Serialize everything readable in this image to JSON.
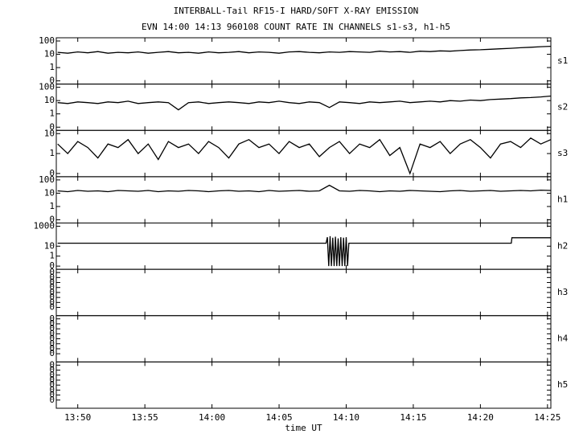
{
  "chart_data": [
    {
      "type": "line",
      "title": "INTERBALL-Tail RF15-I HARD/SOFT X-RAY EMISSION",
      "subtitle": "EVN 14:00 14:13 960108  COUNT RATE IN CHANNELS s1-s3, h1-h5",
      "label": "s1",
      "yscale": "log",
      "color": "#000000",
      "ylim": [
        0.1,
        100
      ],
      "yticks": [
        100,
        10,
        1,
        {
          "value": 0.1,
          "label": "0"
        }
      ],
      "x": [
        828.5,
        829.25,
        830,
        830.75,
        831.5,
        832.25,
        833,
        833.75,
        834.5,
        835.25,
        836,
        836.75,
        837.5,
        838.25,
        839,
        839.75,
        840.5,
        841.25,
        842,
        842.75,
        843.5,
        844.25,
        845,
        845.75,
        846.5,
        847.25,
        848,
        848.75,
        849.5,
        850.25,
        851,
        851.75,
        852.5,
        853.25,
        854,
        854.75,
        855.5,
        856.25,
        857,
        857.75,
        858.5,
        859.25,
        860,
        860.75,
        861.5,
        862.25,
        863,
        863.75,
        864.5,
        865.25
      ],
      "values": [
        14,
        12,
        15,
        13,
        16,
        12,
        14,
        13,
        15,
        12,
        14,
        16,
        13,
        14,
        12,
        15,
        13,
        14,
        16,
        13,
        15,
        14,
        12,
        15,
        16,
        14,
        13,
        15,
        14,
        16,
        15,
        14,
        17,
        15,
        16,
        14,
        17,
        16,
        18,
        17,
        19,
        21,
        22,
        24,
        26,
        28,
        31,
        34,
        37,
        40
      ]
    },
    {
      "type": "line",
      "label": "s2",
      "yscale": "log",
      "color": "#000000",
      "ylim": [
        0.1,
        100
      ],
      "yticks": [
        100,
        10,
        1,
        {
          "value": 0.1,
          "label": "0"
        }
      ],
      "x": [
        828.5,
        829.25,
        830,
        830.75,
        831.5,
        832.25,
        833,
        833.75,
        834.5,
        835.25,
        836,
        836.75,
        837.5,
        838.25,
        839,
        839.75,
        840.5,
        841.25,
        842,
        842.75,
        843.5,
        844.25,
        845,
        845.75,
        846.5,
        847.25,
        848,
        848.75,
        849.5,
        850.25,
        851,
        851.75,
        852.5,
        853.25,
        854,
        854.75,
        855.5,
        856.25,
        857,
        857.75,
        858.5,
        859.25,
        860,
        860.75,
        861.5,
        862.25,
        863,
        863.75,
        864.5,
        865.25
      ],
      "values": [
        7,
        6,
        8,
        7,
        6,
        8,
        7,
        9,
        6,
        7,
        8,
        7,
        2,
        7,
        8,
        6,
        7,
        8,
        7,
        6,
        8,
        7,
        9,
        7,
        6,
        8,
        7,
        3,
        8,
        7,
        6,
        8,
        7,
        8,
        9,
        7,
        8,
        9,
        8,
        10,
        9,
        11,
        10,
        12,
        13,
        14,
        16,
        17,
        19,
        22
      ]
    },
    {
      "type": "line",
      "label": "s3",
      "yscale": "log",
      "color": "#000000",
      "ylim": [
        0.1,
        10
      ],
      "yticks": [
        10,
        1,
        {
          "value": 0.1,
          "label": "0"
        }
      ],
      "x": [
        828.5,
        829.25,
        830,
        830.75,
        831.5,
        832.25,
        833,
        833.75,
        834.5,
        835.25,
        836,
        836.75,
        837.5,
        838.25,
        839,
        839.75,
        840.5,
        841.25,
        842,
        842.75,
        843.5,
        844.25,
        845,
        845.75,
        846.5,
        847.25,
        848,
        848.75,
        849.5,
        850.25,
        851,
        851.75,
        852.5,
        853.25,
        854,
        854.75,
        855.5,
        856.25,
        857,
        857.75,
        858.5,
        859.25,
        860,
        860.75,
        861.5,
        862.25,
        863,
        863.75,
        864.5,
        865.25
      ],
      "values": [
        3,
        1,
        4,
        2,
        0.6,
        3,
        2,
        5,
        1,
        3,
        0.5,
        4,
        2,
        3,
        1,
        4,
        2,
        0.6,
        3,
        5,
        2,
        3,
        1,
        4,
        2,
        3,
        0.7,
        2,
        4,
        1,
        3,
        2,
        5,
        0.8,
        2,
        0.1,
        3,
        2,
        4,
        1,
        3,
        5,
        2,
        0.6,
        3,
        4,
        2,
        6,
        3,
        5
      ]
    },
    {
      "type": "line",
      "label": "h1",
      "yscale": "log",
      "color": "#000000",
      "ylim": [
        0.1,
        100
      ],
      "yticks": [
        100,
        10,
        1,
        {
          "value": 0.1,
          "label": "0"
        }
      ],
      "x": [
        828.5,
        829.25,
        830,
        830.75,
        831.5,
        832.25,
        833,
        833.75,
        834.5,
        835.25,
        836,
        836.75,
        837.5,
        838.25,
        839,
        839.75,
        840.5,
        841.25,
        842,
        842.75,
        843.5,
        844.25,
        845,
        845.75,
        846.5,
        847.25,
        848,
        848.75,
        849.5,
        850.25,
        851,
        851.75,
        852.5,
        853.25,
        854,
        854.75,
        855.5,
        856.25,
        857,
        857.75,
        858.5,
        859.25,
        860,
        860.75,
        861.5,
        862.25,
        863,
        863.75,
        864.5,
        865.25
      ],
      "values": [
        15,
        13,
        16,
        14,
        15,
        13,
        16,
        15,
        14,
        16,
        13,
        15,
        14,
        16,
        15,
        13,
        15,
        16,
        14,
        15,
        13,
        16,
        14,
        15,
        16,
        14,
        15,
        40,
        15,
        14,
        16,
        15,
        13,
        15,
        14,
        16,
        15,
        14,
        13,
        15,
        16,
        14,
        15,
        16,
        14,
        15,
        16,
        15,
        17,
        16
      ]
    },
    {
      "type": "line",
      "label": "h2",
      "yscale": "log",
      "color": "#000000",
      "ylim": [
        0.1,
        1000
      ],
      "yticks": [
        1000,
        10,
        1,
        {
          "value": 0.1,
          "label": "0"
        }
      ],
      "x": [
        828.5,
        848.5,
        848.6,
        848.7,
        848.8,
        848.9,
        849,
        849.1,
        849.2,
        849.3,
        849.4,
        849.5,
        849.6,
        849.7,
        849.8,
        849.9,
        850,
        850.1,
        850.2,
        862.3,
        862.35,
        865.25
      ],
      "values": [
        20,
        20,
        80,
        0.1,
        100,
        0.1,
        70,
        0.1,
        90,
        0.1,
        60,
        0.1,
        80,
        0.1,
        70,
        0.1,
        80,
        0.1,
        20,
        20,
        70,
        70
      ]
    },
    {
      "type": "line",
      "label": "h3",
      "yscale": "log",
      "ylim": [
        1e-09,
        0.1
      ],
      "yticks": [
        {
          "value": 0.1,
          "label": "0"
        },
        {
          "value": 0.01,
          "label": "0"
        },
        {
          "value": 0.001,
          "label": "0"
        },
        {
          "value": 0.0001,
          "label": "0"
        },
        {
          "value": 1e-05,
          "label": "0"
        },
        {
          "value": 1e-06,
          "label": "0"
        },
        {
          "value": 1e-07,
          "label": "0"
        },
        {
          "value": 1e-08,
          "label": "0"
        }
      ]
    },
    {
      "type": "line",
      "label": "h4",
      "yscale": "log",
      "ylim": [
        1e-09,
        0.1
      ],
      "yticks": [
        {
          "value": 0.1,
          "label": "0"
        },
        {
          "value": 0.01,
          "label": "0"
        },
        {
          "value": 0.001,
          "label": "0"
        },
        {
          "value": 0.0001,
          "label": "0"
        },
        {
          "value": 1e-05,
          "label": "0"
        },
        {
          "value": 1e-06,
          "label": "0"
        },
        {
          "value": 1e-07,
          "label": "0"
        },
        {
          "value": 1e-08,
          "label": "0"
        }
      ]
    },
    {
      "type": "line",
      "label": "h5",
      "yscale": "log",
      "ylim": [
        1e-09,
        0.1
      ],
      "yticks": [
        {
          "value": 0.1,
          "label": "0"
        },
        {
          "value": 0.01,
          "label": "0"
        },
        {
          "value": 0.001,
          "label": "0"
        },
        {
          "value": 0.0001,
          "label": "0"
        },
        {
          "value": 1e-05,
          "label": "0"
        },
        {
          "value": 1e-06,
          "label": "0"
        },
        {
          "value": 1e-07,
          "label": "0"
        },
        {
          "value": 1e-08,
          "label": "0"
        }
      ],
      "xlabel": "time UT",
      "xlim": [
        828.4,
        865.25
      ],
      "xticks": [
        {
          "value": 830,
          "label": "13:50"
        },
        {
          "value": 835,
          "label": "13:55"
        },
        {
          "value": 840,
          "label": "14:00"
        },
        {
          "value": 845,
          "label": "14:05"
        },
        {
          "value": 850,
          "label": "14:10"
        },
        {
          "value": 855,
          "label": "14:15"
        },
        {
          "value": 860,
          "label": "14:20"
        },
        {
          "value": 865,
          "label": "14:25"
        }
      ]
    }
  ]
}
